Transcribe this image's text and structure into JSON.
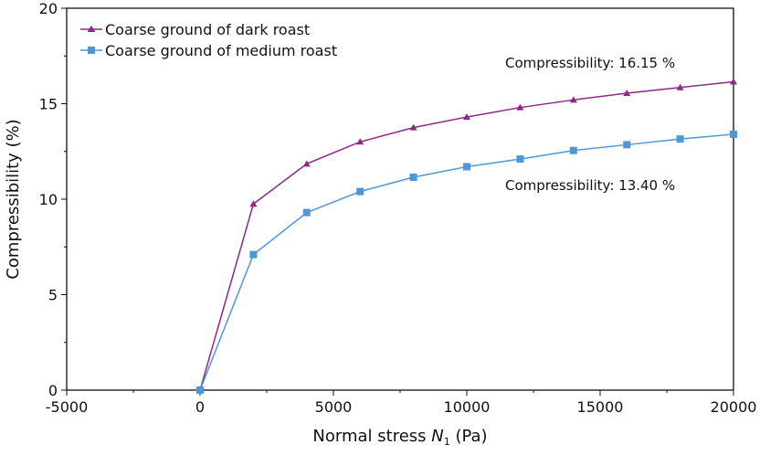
{
  "chart_data": {
    "type": "line",
    "title": "",
    "xlabel_prefix": "Normal stress ",
    "xlabel_var": "N",
    "xlabel_sub": "1",
    "xlabel_suffix": " (Pa)",
    "ylabel": "Compressibility (%)",
    "xlim": [
      -5000,
      20000
    ],
    "ylim": [
      0,
      20
    ],
    "xticks": [
      -5000,
      0,
      5000,
      10000,
      15000,
      20000
    ],
    "yticks": [
      0,
      5,
      10,
      15,
      20
    ],
    "grid": false,
    "legend_position": "top-left",
    "x": [
      0,
      2000,
      4000,
      6000,
      8000,
      10000,
      12000,
      14000,
      16000,
      18000,
      20000
    ],
    "series": [
      {
        "name": "Coarse ground of dark roast",
        "color": "#8B2A85",
        "marker": "triangle",
        "values": [
          0,
          9.75,
          11.85,
          13.0,
          13.75,
          14.3,
          14.8,
          15.2,
          15.55,
          15.85,
          16.15
        ]
      },
      {
        "name": "Coarse ground of medium roast",
        "color": "#4E97D8",
        "marker": "square",
        "values": [
          0,
          7.1,
          9.3,
          10.4,
          11.15,
          11.7,
          12.1,
          12.55,
          12.85,
          13.15,
          13.4
        ]
      }
    ],
    "annotations": [
      "Compressibility: 16.15 %",
      "Compressibility: 13.40 %"
    ]
  }
}
